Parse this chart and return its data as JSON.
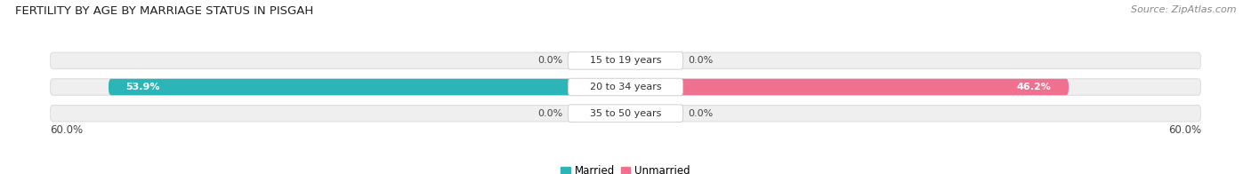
{
  "title": "FERTILITY BY AGE BY MARRIAGE STATUS IN PISGAH",
  "source": "Source: ZipAtlas.com",
  "rows": [
    {
      "label": "15 to 19 years",
      "married": 0.0,
      "unmarried": 0.0
    },
    {
      "label": "20 to 34 years",
      "married": 53.9,
      "unmarried": 46.2
    },
    {
      "label": "35 to 50 years",
      "married": 0.0,
      "unmarried": 0.0
    }
  ],
  "max_val": 60.0,
  "married_color": "#2bb5b8",
  "unmarried_color": "#f07090",
  "married_light": "#90d8dc",
  "unmarried_light": "#f5b0c5",
  "bar_bg_color": "#efefef",
  "bar_bg_edge": "#dddddd",
  "title_fontsize": 9.5,
  "source_fontsize": 8,
  "axis_label_fontsize": 8.5,
  "bar_label_fontsize": 8,
  "legend_fontsize": 8.5,
  "row_label_fontsize": 8
}
